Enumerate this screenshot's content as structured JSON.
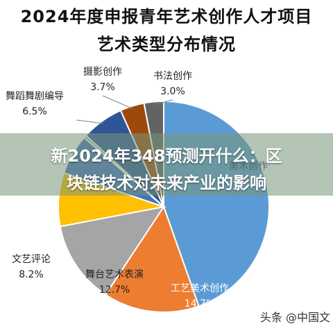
{
  "chart_data": {
    "type": "pie",
    "title": "2024年度申报青年艺术创作人才项目",
    "subtitle": "艺术类型分布情况",
    "slices": [
      {
        "label": "美术创作",
        "pct_label": "",
        "value": 44.6,
        "color": "#5b9bd5"
      },
      {
        "label": "工艺美术创作",
        "pct_label": "14.7%",
        "value": 14.7,
        "color": "#ed7d31"
      },
      {
        "label": "舞台艺术表演",
        "pct_label": "12.7%",
        "value": 12.7,
        "color": "#a5a5a5"
      },
      {
        "label": "文艺评论",
        "pct_label": "8.2%",
        "value": 8.2,
        "color": "#ffc000"
      },
      {
        "label": "",
        "pct_label": "",
        "value": 6.2,
        "color": "#4472c4"
      },
      {
        "label": "",
        "pct_label": "",
        "value": 0.4,
        "color": "#70ad47"
      },
      {
        "label": "舞蹈舞剧编导",
        "pct_label": "6.5%",
        "value": 6.5,
        "color": "#2f5597"
      },
      {
        "label": "摄影创作",
        "pct_label": "3.7%",
        "value": 3.7,
        "color": "#9e480e"
      },
      {
        "label": "书法创作",
        "pct_label": "3.0%",
        "value": 3.0,
        "color": "#636363"
      }
    ]
  },
  "banner": {
    "line1": "新2024年348预测开什么：区",
    "line2": "块链技术对未来产业的影响"
  },
  "watermark": "头条 @中国文"
}
